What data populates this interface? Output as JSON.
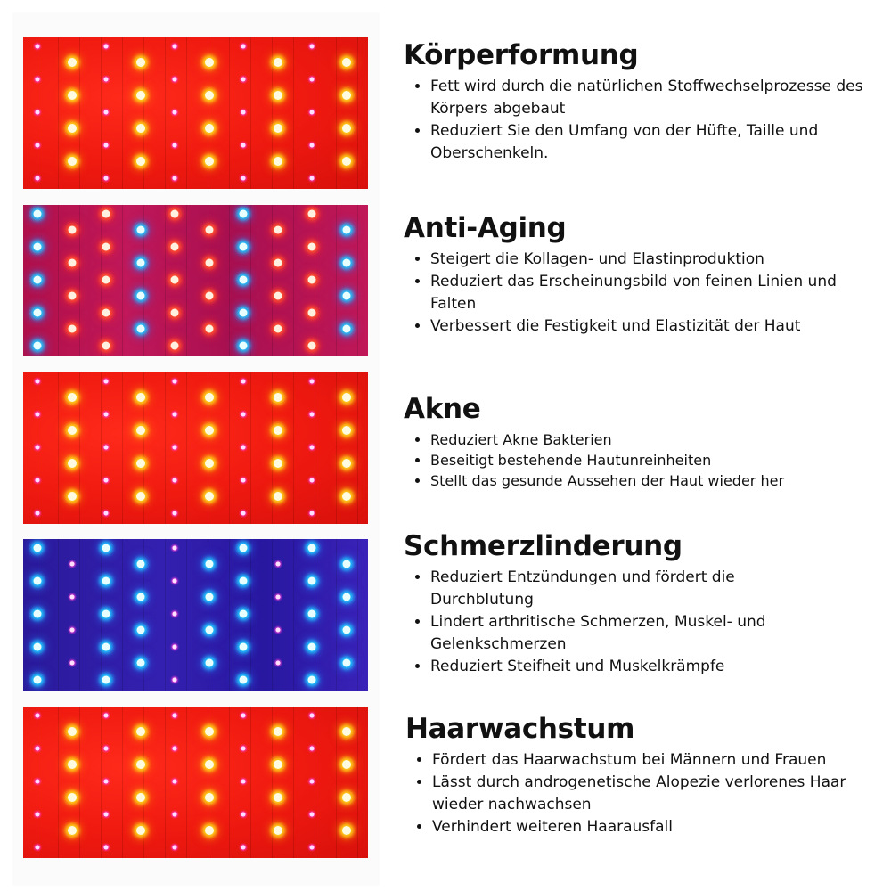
{
  "colors": {
    "red_panel": "#f01a10",
    "purple_panel": "#b0104a",
    "blue_panel": "#3420b0",
    "text": "#111111"
  },
  "sections": [
    {
      "title": "Körperformung",
      "panel": "red",
      "bullets": [
        "Fett wird durch die natürlichen Stoffwechselprozesse des Körpers abgebaut",
        "Reduziert Sie den Umfang von der Hüfte, Taille und Oberschenkeln."
      ]
    },
    {
      "title": "Anti-Aging",
      "panel": "purple",
      "bullets": [
        "Steigert die Kollagen- und Elastinproduktion",
        "Reduziert das Erscheinungsbild von feinen Linien und Falten",
        "Verbessert die Festigkeit und Elastizität der Haut"
      ]
    },
    {
      "title": "Akne",
      "panel": "red",
      "bullets": [
        "Reduziert Akne Bakterien",
        "Beseitigt bestehende Hautunreinheiten",
        "Stellt das gesunde Aussehen der Haut wieder her"
      ]
    },
    {
      "title": "Schmerzlinderung",
      "panel": "blue",
      "bullets": [
        "Reduziert Entzündungen und fördert die Durchblutung",
        "Lindert arthritische Schmerzen, Muskel- und Gelenkschmerzen",
        "Reduziert Steifheit und Muskelkrämpfe"
      ]
    },
    {
      "title": "Haarwachstum",
      "panel": "red",
      "bullets": [
        "Fördert das Haarwachstum bei Männern und Frauen",
        "Lässt durch androgenetische Alopezie verlorenes Haar wieder nachwachsen",
        "Verhindert weiteren Haarausfall"
      ]
    }
  ]
}
